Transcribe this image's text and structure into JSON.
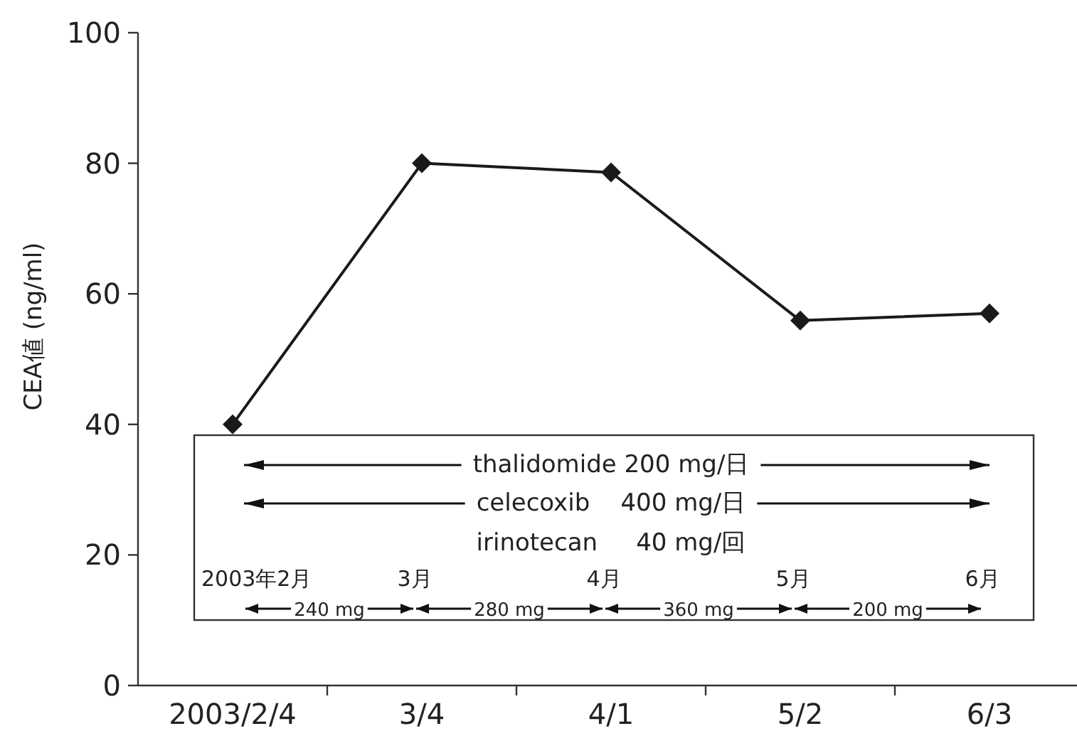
{
  "chart_data": {
    "type": "line",
    "ylabel": "CEA値 (ng/ml)",
    "categories": [
      "2003/2/4",
      "3/4",
      "4/1",
      "5/2",
      "6/3"
    ],
    "series": [
      {
        "color": "#1a1a1a",
        "values": [
          40,
          80,
          78.6,
          55.9,
          57
        ]
      }
    ],
    "ylim": [
      0,
      100
    ],
    "yticks": [
      0,
      20,
      40,
      60,
      80,
      100
    ],
    "marker": "diamond",
    "line_style": "solid",
    "grid": false,
    "annotations": [
      "thalidomide 200 mg/日",
      "celecoxib    400 mg/日",
      "irinotecan     40 mg/回",
      "2003年2月",
      "3月",
      "4月",
      "5月",
      "6月",
      "240 mg",
      "280 mg",
      "360 mg",
      "200 mg"
    ]
  }
}
